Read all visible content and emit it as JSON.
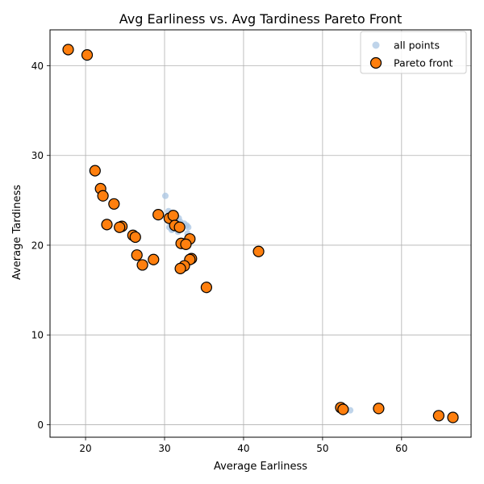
{
  "chart_data": {
    "type": "scatter",
    "title": "Avg Earliness vs. Avg Tardiness Pareto Front",
    "xlabel": "Average Earliness",
    "ylabel": "Average Tardiness",
    "xlim": [
      15.5,
      68.8
    ],
    "ylim": [
      -1.4,
      44.0
    ],
    "xticks": [
      20,
      30,
      40,
      50,
      60
    ],
    "yticks": [
      0,
      10,
      20,
      30,
      40
    ],
    "grid": true,
    "legend_position": "top-right",
    "colors": {
      "all_points": "#a9c6e3",
      "pareto": "#ff7f0e",
      "pareto_edge": "#000000",
      "grid": "#b0b0b0"
    },
    "series": [
      {
        "name": "all points",
        "points": [
          [
            30.1,
            25.5
          ],
          [
            30.5,
            23.8
          ],
          [
            31.0,
            23.6
          ],
          [
            31.4,
            23.4
          ],
          [
            31.8,
            23.0
          ],
          [
            30.3,
            22.8
          ],
          [
            30.8,
            22.5
          ],
          [
            31.2,
            22.3
          ],
          [
            32.0,
            22.6
          ],
          [
            32.5,
            22.4
          ],
          [
            32.8,
            22.2
          ],
          [
            30.6,
            22.0
          ],
          [
            31.0,
            21.8
          ],
          [
            31.5,
            22.0
          ],
          [
            32.2,
            21.8
          ],
          [
            33.0,
            22.0
          ],
          [
            30.9,
            21.7
          ],
          [
            31.7,
            21.5
          ],
          [
            32.9,
            21.3
          ],
          [
            31.3,
            22.9
          ],
          [
            53.5,
            1.6
          ],
          [
            52.8,
            1.8
          ]
        ]
      },
      {
        "name": "Pareto front",
        "points": [
          [
            17.8,
            41.8
          ],
          [
            20.2,
            41.2
          ],
          [
            21.2,
            28.3
          ],
          [
            21.9,
            26.3
          ],
          [
            22.2,
            25.5
          ],
          [
            23.6,
            24.6
          ],
          [
            22.7,
            22.3
          ],
          [
            24.6,
            22.1
          ],
          [
            24.3,
            22.0
          ],
          [
            26.0,
            21.1
          ],
          [
            26.3,
            20.9
          ],
          [
            29.2,
            23.4
          ],
          [
            30.6,
            23.0
          ],
          [
            31.1,
            23.3
          ],
          [
            31.3,
            22.2
          ],
          [
            31.9,
            22.0
          ],
          [
            33.2,
            20.7
          ],
          [
            32.1,
            20.2
          ],
          [
            32.7,
            20.1
          ],
          [
            26.5,
            18.9
          ],
          [
            28.6,
            18.4
          ],
          [
            33.4,
            18.5
          ],
          [
            33.2,
            18.4
          ],
          [
            27.2,
            17.8
          ],
          [
            32.5,
            17.7
          ],
          [
            32.0,
            17.4
          ],
          [
            35.3,
            15.3
          ],
          [
            41.9,
            19.3
          ],
          [
            52.3,
            1.9
          ],
          [
            52.6,
            1.7
          ],
          [
            57.1,
            1.8
          ],
          [
            64.7,
            1.0
          ],
          [
            66.5,
            0.8
          ]
        ]
      }
    ]
  }
}
